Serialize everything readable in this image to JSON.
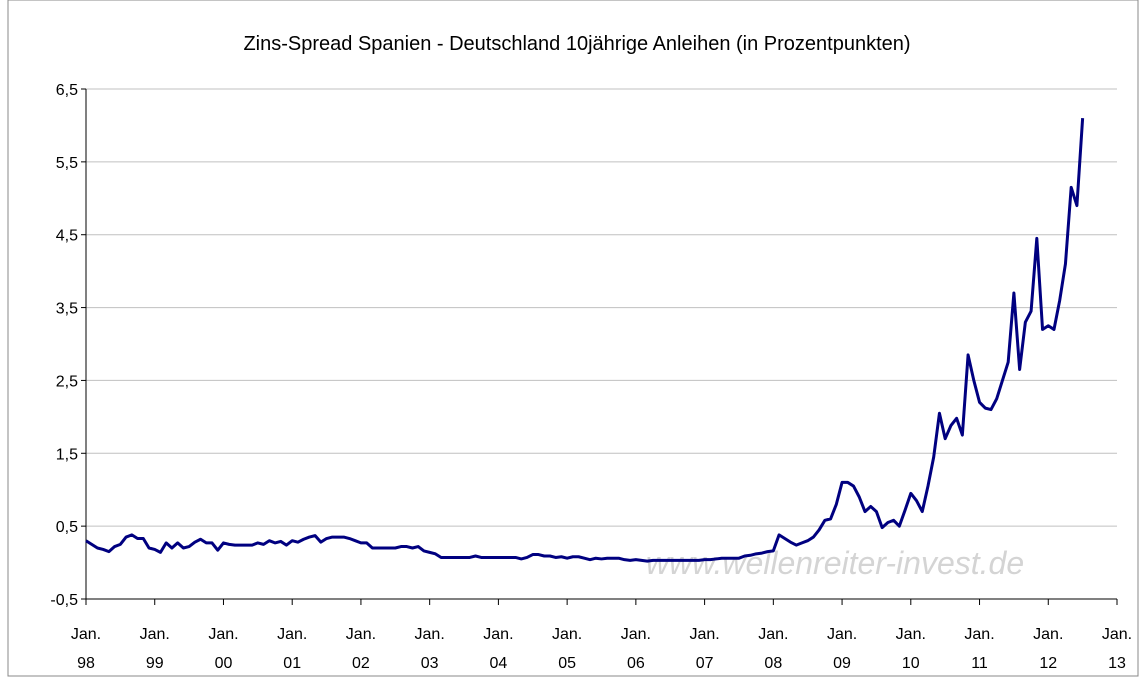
{
  "chart_data": {
    "type": "line",
    "title": "Zins-Spread Spanien - Deutschland 10jährige Anleihen (in Prozentpunkten)",
    "watermark": "www.wellenreiter-invest.de",
    "categories": [
      "Jan. 98",
      null,
      null,
      null,
      null,
      null,
      null,
      null,
      null,
      null,
      null,
      null,
      "Jan. 99",
      null,
      null,
      null,
      null,
      null,
      null,
      null,
      null,
      null,
      null,
      null,
      "Jan. 00",
      null,
      null,
      null,
      null,
      null,
      null,
      null,
      null,
      null,
      null,
      null,
      "Jan. 01",
      null,
      null,
      null,
      null,
      null,
      null,
      null,
      null,
      null,
      null,
      null,
      "Jan. 02",
      null,
      null,
      null,
      null,
      null,
      null,
      null,
      null,
      null,
      null,
      null,
      "Jan. 03",
      null,
      null,
      null,
      null,
      null,
      null,
      null,
      null,
      null,
      null,
      null,
      "Jan. 04",
      null,
      null,
      null,
      null,
      null,
      null,
      null,
      null,
      null,
      null,
      null,
      "Jan. 05",
      null,
      null,
      null,
      null,
      null,
      null,
      null,
      null,
      null,
      null,
      null,
      "Jan. 06",
      null,
      null,
      null,
      null,
      null,
      null,
      null,
      null,
      null,
      null,
      null,
      "Jan. 07",
      null,
      null,
      null,
      null,
      null,
      null,
      null,
      null,
      null,
      null,
      null,
      "Jan. 08",
      null,
      null,
      null,
      null,
      null,
      null,
      null,
      null,
      null,
      null,
      null,
      "Jan. 09",
      null,
      null,
      null,
      null,
      null,
      null,
      null,
      null,
      null,
      null,
      null,
      "Jan. 10",
      null,
      null,
      null,
      null,
      null,
      null,
      null,
      null,
      null,
      null,
      null,
      "Jan. 11",
      null,
      null,
      null,
      null,
      null,
      null,
      null,
      null,
      null,
      null,
      null,
      "Jan. 12",
      null,
      null,
      null,
      null,
      null,
      null,
      null,
      null,
      null,
      null,
      null,
      "Jan. 13"
    ],
    "series": [
      {
        "color": "#000080",
        "values": [
          0.3,
          0.25,
          0.2,
          0.18,
          0.15,
          0.22,
          0.25,
          0.35,
          0.38,
          0.33,
          0.33,
          0.2,
          0.18,
          0.14,
          0.27,
          0.2,
          0.27,
          0.2,
          0.22,
          0.28,
          0.32,
          0.27,
          0.27,
          0.17,
          0.27,
          0.25,
          0.24,
          0.24,
          0.24,
          0.24,
          0.27,
          0.25,
          0.3,
          0.27,
          0.29,
          0.24,
          0.3,
          0.28,
          0.32,
          0.35,
          0.37,
          0.28,
          0.33,
          0.35,
          0.35,
          0.35,
          0.33,
          0.3,
          0.27,
          0.27,
          0.2,
          0.2,
          0.2,
          0.2,
          0.2,
          0.22,
          0.22,
          0.2,
          0.22,
          0.16,
          0.14,
          0.12,
          0.07,
          0.07,
          0.07,
          0.07,
          0.07,
          0.07,
          0.09,
          0.07,
          0.07,
          0.07,
          0.07,
          0.07,
          0.07,
          0.07,
          0.05,
          0.07,
          0.11,
          0.11,
          0.09,
          0.09,
          0.07,
          0.08,
          0.06,
          0.08,
          0.08,
          0.06,
          0.04,
          0.06,
          0.05,
          0.06,
          0.06,
          0.06,
          0.04,
          0.03,
          0.04,
          0.03,
          0.02,
          0.03,
          0.03,
          0.03,
          0.03,
          0.03,
          0.03,
          0.03,
          0.03,
          0.03,
          0.04,
          0.04,
          0.05,
          0.06,
          0.06,
          0.06,
          0.06,
          0.09,
          0.1,
          0.12,
          0.13,
          0.15,
          0.16,
          0.38,
          0.33,
          0.28,
          0.24,
          0.27,
          0.3,
          0.35,
          0.45,
          0.58,
          0.6,
          0.8,
          1.1,
          1.1,
          1.05,
          0.9,
          0.7,
          0.77,
          0.7,
          0.48,
          0.55,
          0.58,
          0.5,
          0.72,
          0.95,
          0.85,
          0.7,
          1.05,
          1.45,
          2.05,
          1.7,
          1.88,
          1.98,
          1.75,
          2.85,
          2.5,
          2.2,
          2.12,
          2.1,
          2.25,
          2.5,
          2.75,
          3.7,
          2.65,
          3.3,
          3.45,
          4.45,
          3.2,
          3.25,
          3.2,
          3.6,
          4.1,
          5.15,
          4.9,
          6.1,
          null,
          null,
          null,
          null,
          null,
          null
        ]
      }
    ],
    "ylim": [
      -0.5,
      6.5
    ],
    "yticks": [
      {
        "value": -0.5,
        "label": "-0,5"
      },
      {
        "value": 0.5,
        "label": "0,5"
      },
      {
        "value": 1.5,
        "label": "1,5"
      },
      {
        "value": 2.5,
        "label": "2,5"
      },
      {
        "value": 3.5,
        "label": "3,5"
      },
      {
        "value": 4.5,
        "label": "4,5"
      },
      {
        "value": 5.5,
        "label": "5,5"
      },
      {
        "value": 6.5,
        "label": "6,5"
      }
    ],
    "grid": true
  }
}
